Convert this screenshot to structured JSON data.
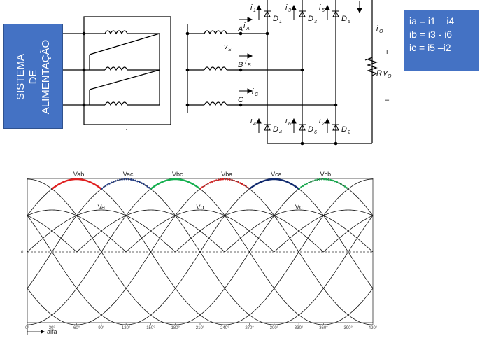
{
  "supply_box": {
    "lines": [
      "SISTEMA",
      "DE",
      "ALIMENTAÇÃO"
    ]
  },
  "equations": [
    "ia = i1 – i4",
    "ib = i3 - i6",
    "ic = i5 –i2"
  ],
  "circuit_labels": {
    "phase_a": "A",
    "phase_b": "B",
    "phase_c": "C",
    "ia": "i",
    "ia_sub": "A",
    "ib": "i",
    "ib_sub": "B",
    "ic": "i",
    "ic_sub": "C",
    "vs": "v",
    "vs_sub": "S",
    "d1": "D",
    "d1_sub": "1",
    "d3": "D",
    "d3_sub": "3",
    "d5": "D",
    "d5_sub": "5",
    "d4": "D",
    "d4_sub": "4",
    "d6": "D",
    "d6_sub": "6",
    "d2": "D",
    "d2_sub": "2",
    "i1": "i",
    "i1_sub": "1",
    "i3": "i",
    "i3_sub": "3",
    "i5": "i",
    "i5_sub": "5",
    "i4": "i",
    "i4_sub": "4",
    "i6": "i",
    "i6_sub": "6",
    "i2": "i",
    "i2_sub": "2",
    "io": "i",
    "io_sub": "O",
    "r": "R",
    "vo": "v",
    "vo_sub": "O",
    "plus": "+",
    "minus": "–"
  },
  "waveform": {
    "line_labels": [
      "Vab",
      "Vac",
      "Vbc",
      "Vba",
      "Vca",
      "Vcb"
    ],
    "phase_labels": [
      "Va",
      "Vb",
      "Vc"
    ],
    "x_ticks": [
      "0°",
      "30°",
      "60°",
      "90°",
      "120°",
      "150°",
      "180°",
      "210°",
      "240°",
      "270°",
      "300°",
      "330°",
      "360°",
      "390°",
      "420°"
    ],
    "y_zero_label": "0",
    "axis_label": "alfa",
    "highlight_colors": [
      "#e02020",
      "#1e3a8a",
      "#16b050",
      "#e02020",
      "#102a6e",
      "#16b050"
    ],
    "highlight_dotted": [
      false,
      true,
      false,
      true,
      false,
      true
    ]
  }
}
